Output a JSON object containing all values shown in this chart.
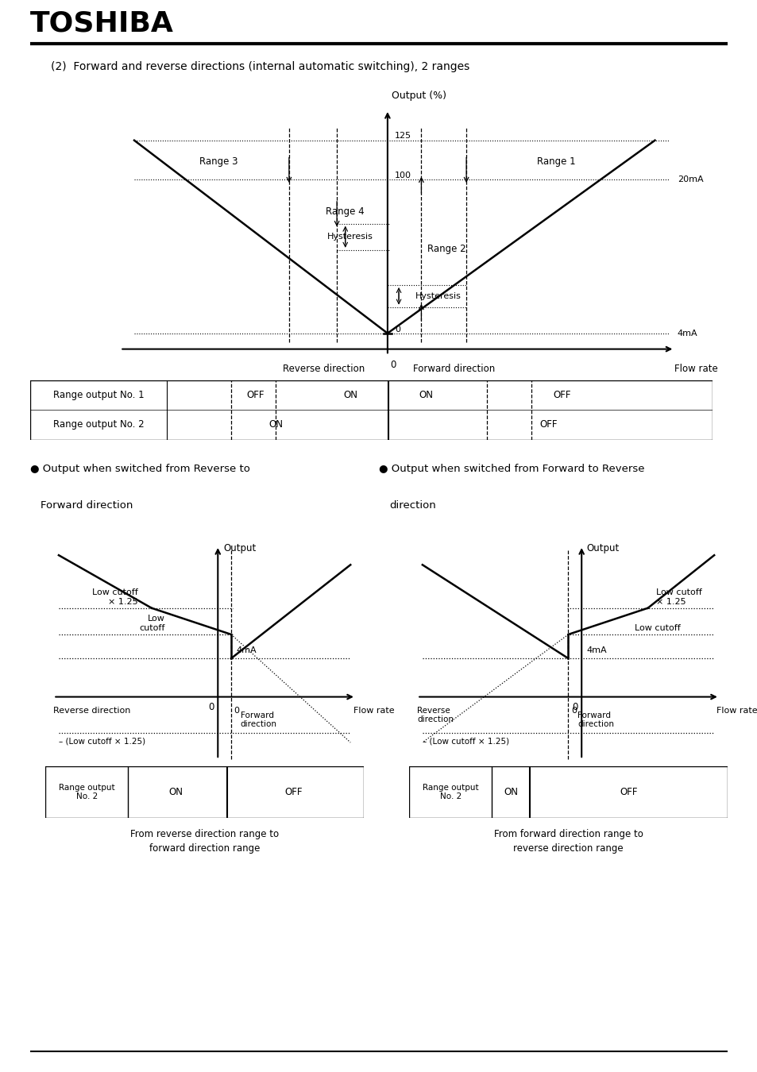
{
  "title": "TOSHIBA",
  "subtitle": "(2)  Forward and reverse directions (internal automatic switching), 2 ranges",
  "bg_color": "#ffffff",
  "text_color": "#000000",
  "main_diagram": {
    "output_label": "Output (%)",
    "label_20mA": "20mA",
    "label_4mA": "4mA",
    "label_125": "125",
    "label_100": "100",
    "label_0": "0",
    "range3": "Range 3",
    "range4": "Range 4",
    "range1": "Range 1",
    "range2": "Range 2",
    "hysteresis": "Hysteresis",
    "xaxis_reverse": "Reverse direction",
    "xaxis_forward": "Forward direction",
    "xaxis_flow": "Flow rate",
    "xaxis_0": "0",
    "row1_label": "Range output No. 1",
    "row1_vals": [
      "OFF",
      "ON",
      "ON",
      "OFF"
    ],
    "row2_label": "Range output No. 2",
    "row2_vals": [
      "ON",
      "OFF"
    ]
  },
  "sec_left_title1": "● Output when switched from Reverse to",
  "sec_left_title2": "  Forward direction",
  "sec_right_title1": "● Output when switched from Forward to Reverse",
  "sec_right_title2": "  direction",
  "lower": {
    "output_label": "Output",
    "low_cutoff_x125": "Low cutoff\n× 1.25",
    "low_cutoff_left": "Low\ncutoff",
    "low_cutoff_right": "Low cutoff",
    "label_4mA": "4mA",
    "label_0": "0",
    "minus_low": "– (Low cutoff × 1.25)",
    "xaxis_flow": "Flow rate",
    "xaxis_0": "0",
    "table_label": "Range output\nNo. 2",
    "table_on": "ON",
    "table_off": "OFF",
    "left_caption": "From reverse direction range to\nforward direction range",
    "right_caption": "From forward direction range to\nreverse direction range",
    "left_rev": "Reverse direction",
    "left_fwd": "Forward\ndirection",
    "right_rev": "Reverse\ndirection",
    "right_fwd": "Forward\ndirection"
  }
}
